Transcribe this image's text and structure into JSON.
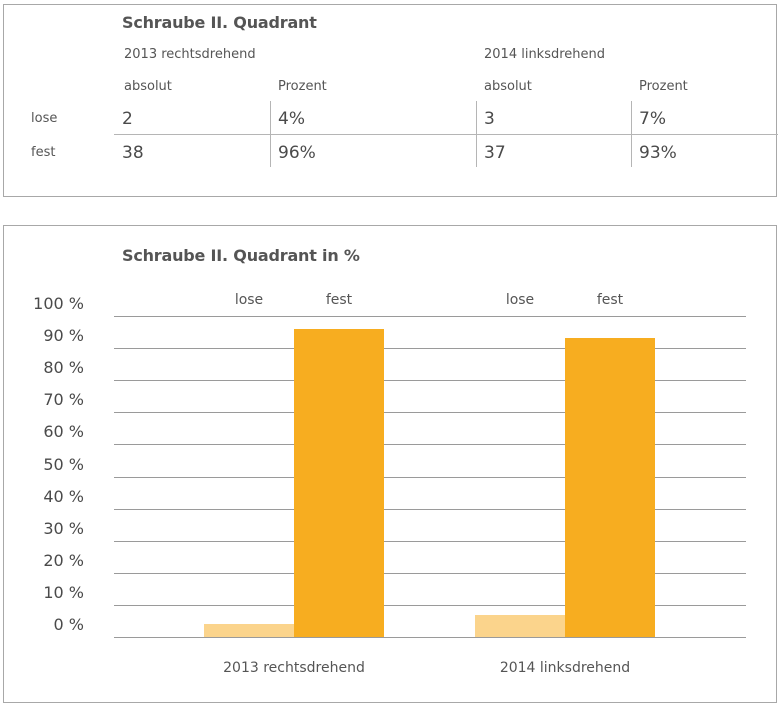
{
  "table": {
    "title": "Schraube II. Quadrant",
    "groups": [
      "2013 rechtsdrehend",
      "2014 linksdrehend"
    ],
    "subheaders": [
      "absolut",
      "Prozent",
      "absolut",
      "Prozent"
    ],
    "rows": [
      {
        "label": "lose",
        "cells": [
          "2",
          "4%",
          "3",
          "7%"
        ]
      },
      {
        "label": "fest",
        "cells": [
          "38",
          "96%",
          "37",
          "93%"
        ]
      }
    ]
  },
  "chart_data": {
    "type": "bar",
    "title": "Schraube II. Quadrant in %",
    "categories": [
      "2013 rechtsdrehend",
      "2014 linksdrehend"
    ],
    "series": [
      {
        "name": "lose",
        "values": [
          4,
          7
        ],
        "color": "#fbd48c"
      },
      {
        "name": "fest",
        "values": [
          96,
          93
        ],
        "color": "#f7ad20"
      }
    ],
    "ylim": [
      0,
      100
    ],
    "yticks": [
      "100 %",
      "90 %",
      "80 %",
      "70 %",
      "60 %",
      "50 %",
      "40 %",
      "30 %",
      "20 %",
      "10 %",
      "0 %"
    ],
    "grid": true,
    "legend_placement": "above bars"
  }
}
